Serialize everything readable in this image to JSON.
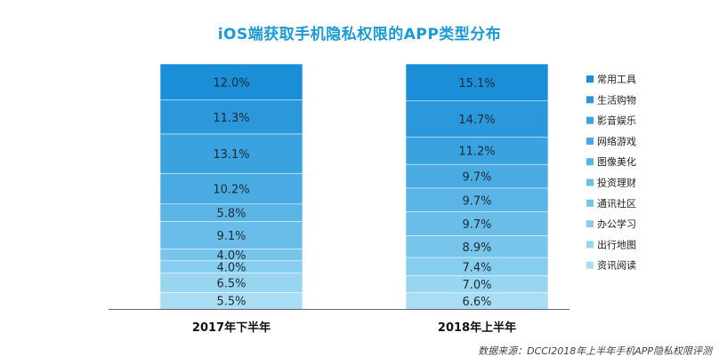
{
  "chart_data": {
    "type": "bar",
    "stacked": true,
    "normalized": true,
    "title": "iOS端获取手机隐私权限的APP类型分布",
    "source": "数据来源：DCCI2018年上半年手机APP隐私权限评测",
    "categories": [
      "2017年下半年",
      "2018年上半年"
    ],
    "value_labels": [
      [
        "12.0%",
        "11.3%",
        "13.1%",
        "10.2%",
        "5.8%",
        "9.1%",
        "4.0%",
        "4.0%",
        "6.5%",
        "5.5%"
      ],
      [
        "15.1%",
        "14.7%",
        "11.2%",
        "9.7%",
        "9.7%",
        "9.7%",
        "8.9%",
        "7.4%",
        "7.0%",
        "6.6%"
      ]
    ],
    "series": [
      {
        "name": "常用工具",
        "values": [
          12.0,
          15.1
        ],
        "color": "#1a8ed6"
      },
      {
        "name": "生活购物",
        "values": [
          11.3,
          14.7
        ],
        "color": "#2a98da"
      },
      {
        "name": "影音娱乐",
        "values": [
          13.1,
          11.2
        ],
        "color": "#3aa2de"
      },
      {
        "name": "网络游戏",
        "values": [
          10.2,
          9.7
        ],
        "color": "#4aabe2"
      },
      {
        "name": "图像美化",
        "values": [
          5.8,
          9.7
        ],
        "color": "#5ab4e5"
      },
      {
        "name": "投资理财",
        "values": [
          9.1,
          9.7
        ],
        "color": "#69bde8"
      },
      {
        "name": "通讯社区",
        "values": [
          4.0,
          8.9
        ],
        "color": "#78c5eb"
      },
      {
        "name": "办公学习",
        "values": [
          4.0,
          7.4
        ],
        "color": "#87cdee"
      },
      {
        "name": "出行地图",
        "values": [
          6.5,
          7.0
        ],
        "color": "#97d5f1"
      },
      {
        "name": "资讯阅读",
        "values": [
          5.5,
          6.6
        ],
        "color": "#a8ddf4"
      }
    ],
    "legend_position": "right",
    "grid": false
  }
}
